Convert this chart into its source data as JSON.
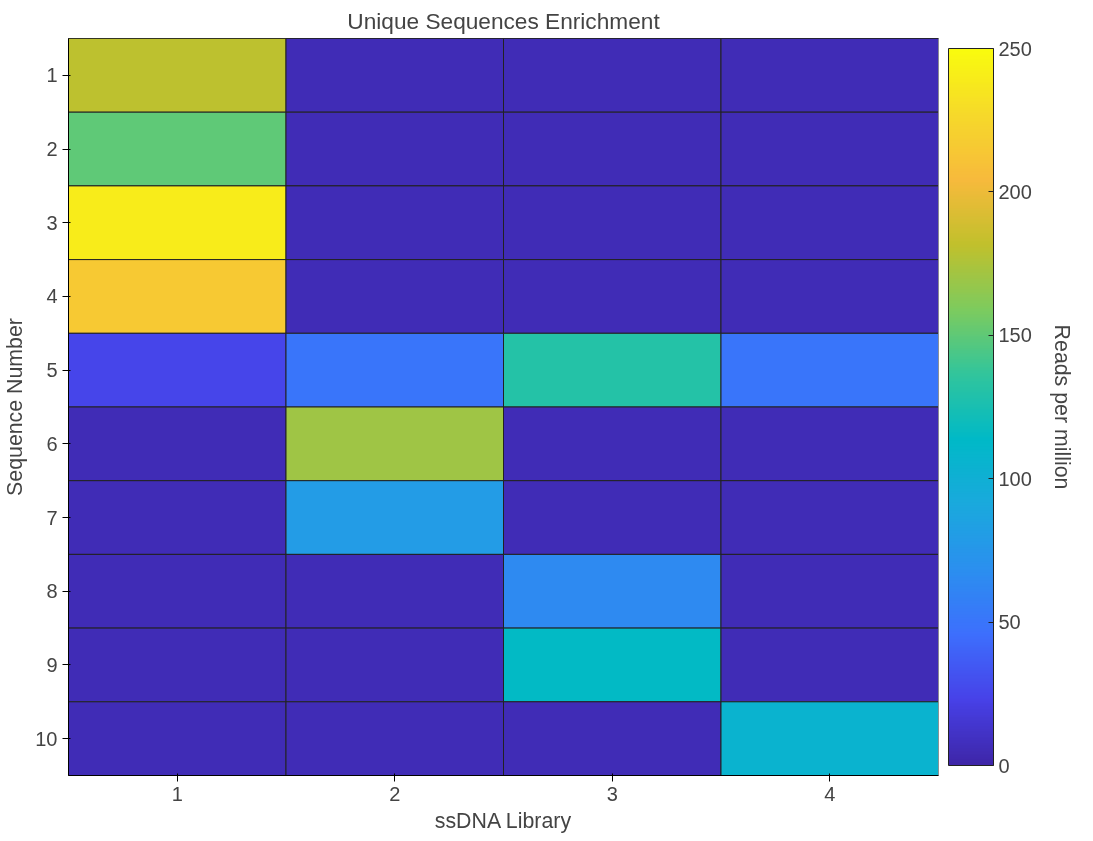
{
  "chart_data": {
    "type": "heatmap",
    "title": "Unique Sequences Enrichment",
    "xlabel": "ssDNA Library",
    "ylabel": "Sequence Number",
    "clabel": "Reads per million",
    "categories": [
      "1",
      "2",
      "3",
      "4"
    ],
    "y_categories": [
      "1",
      "2",
      "3",
      "4",
      "5",
      "6",
      "7",
      "8",
      "9",
      "10"
    ],
    "cells": [
      [
        180,
        5,
        5,
        5
      ],
      [
        150,
        5,
        5,
        5
      ],
      [
        240,
        5,
        5,
        5
      ],
      [
        215,
        5,
        5,
        5
      ],
      [
        25,
        50,
        130,
        50
      ],
      [
        5,
        170,
        5,
        5
      ],
      [
        5,
        80,
        5,
        5
      ],
      [
        5,
        5,
        65,
        5
      ],
      [
        5,
        5,
        115,
        5
      ],
      [
        5,
        5,
        5,
        105
      ]
    ],
    "clim": [
      0,
      250
    ],
    "cticks": [
      0,
      50,
      100,
      150,
      200,
      250
    ],
    "grid": false
  }
}
